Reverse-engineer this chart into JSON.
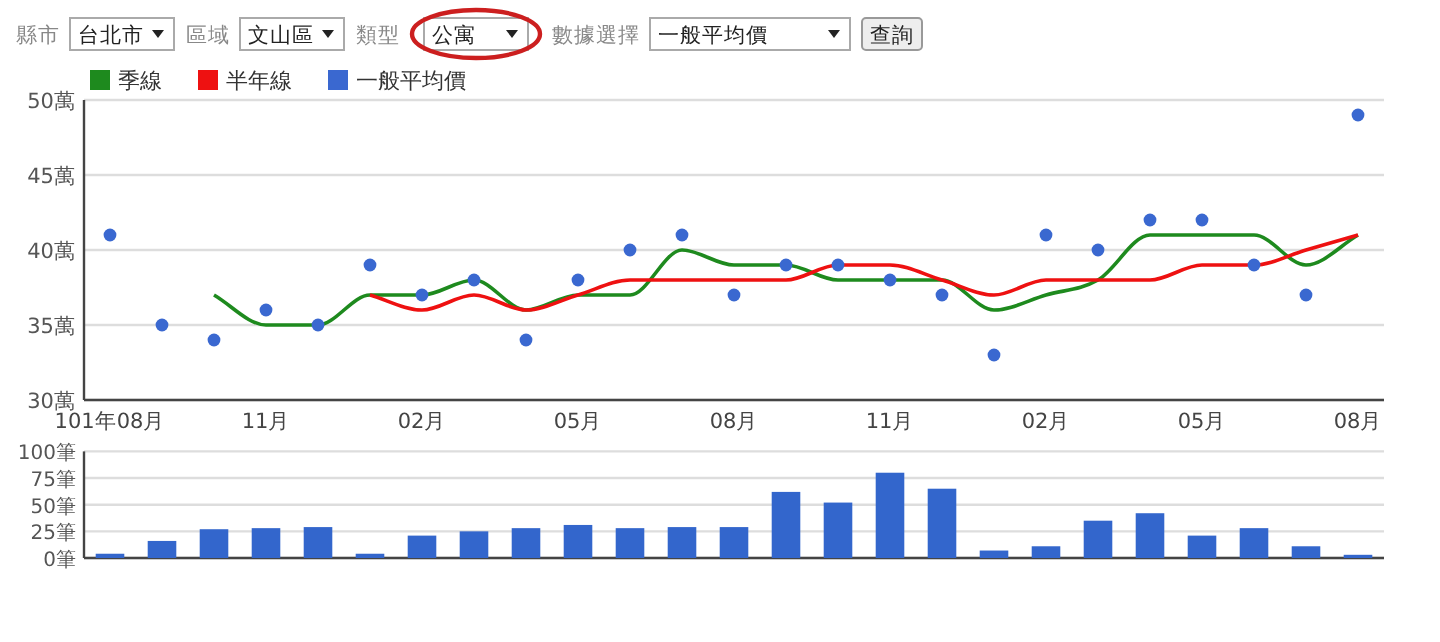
{
  "chart_data": [
    {
      "type": "line",
      "categories": [
        "101年08月",
        null,
        null,
        "11月",
        null,
        null,
        "02月",
        null,
        null,
        "05月",
        null,
        null,
        "08月",
        null,
        null,
        "11月",
        null,
        null,
        "02月",
        null,
        null,
        "05月",
        null,
        null,
        "08月"
      ],
      "series": [
        {
          "name": "季線",
          "type": "line",
          "color": "#1e8a1e",
          "values": [
            null,
            null,
            37,
            35,
            35,
            37,
            37,
            38,
            36,
            37,
            37,
            40,
            39,
            39,
            38,
            38,
            38,
            36,
            37,
            38,
            41,
            41,
            41,
            39,
            41
          ]
        },
        {
          "name": "半年線",
          "type": "line",
          "color": "#ee1111",
          "values": [
            null,
            null,
            null,
            null,
            null,
            37,
            36,
            37,
            36,
            37,
            38,
            38,
            38,
            38,
            39,
            39,
            38,
            37,
            38,
            38,
            38,
            39,
            39,
            40,
            41
          ]
        },
        {
          "name": "一般平均價",
          "type": "scatter",
          "marker": "circle",
          "color": "#3a68d0",
          "values": [
            41,
            35,
            34,
            36,
            35,
            39,
            37,
            38,
            34,
            38,
            40,
            41,
            37,
            39,
            39,
            38,
            37,
            33,
            41,
            40,
            42,
            42,
            39,
            37,
            49
          ]
        }
      ],
      "ylim": [
        30,
        50
      ],
      "yticks": [
        {
          "value": 30,
          "label": "30萬"
        },
        {
          "value": 35,
          "label": "35萬"
        },
        {
          "value": 40,
          "label": "40萬"
        },
        {
          "value": 45,
          "label": "45萬"
        },
        {
          "value": 50,
          "label": "50萬"
        }
      ],
      "grid": "y",
      "legend": "top left",
      "annotations": [
        "縣市",
        "台北市",
        "區域",
        "文山區",
        "類型",
        "公寓",
        "數據選擇",
        "一般平均價",
        "查詢"
      ]
    },
    {
      "type": "bar",
      "categories": [
        null,
        null,
        null,
        null,
        null,
        null,
        null,
        null,
        null,
        null,
        null,
        null,
        null,
        null,
        null,
        null,
        null,
        null,
        null,
        null,
        null,
        null,
        null,
        null,
        null
      ],
      "values": [
        4,
        16,
        27,
        28,
        29,
        4,
        21,
        25,
        28,
        31,
        28,
        29,
        29,
        62,
        52,
        80,
        65,
        7,
        11,
        35,
        42,
        21,
        28,
        11,
        3
      ],
      "color": "#3366cc",
      "ylim": [
        0,
        100
      ],
      "yticks": [
        {
          "value": 0,
          "label": "0筆"
        },
        {
          "value": 25,
          "label": "25筆"
        },
        {
          "value": 50,
          "label": "50筆"
        },
        {
          "value": 75,
          "label": "75筆"
        },
        {
          "value": 100,
          "label": "100筆"
        }
      ],
      "grid": "y",
      "tick_labels": "y"
    }
  ]
}
